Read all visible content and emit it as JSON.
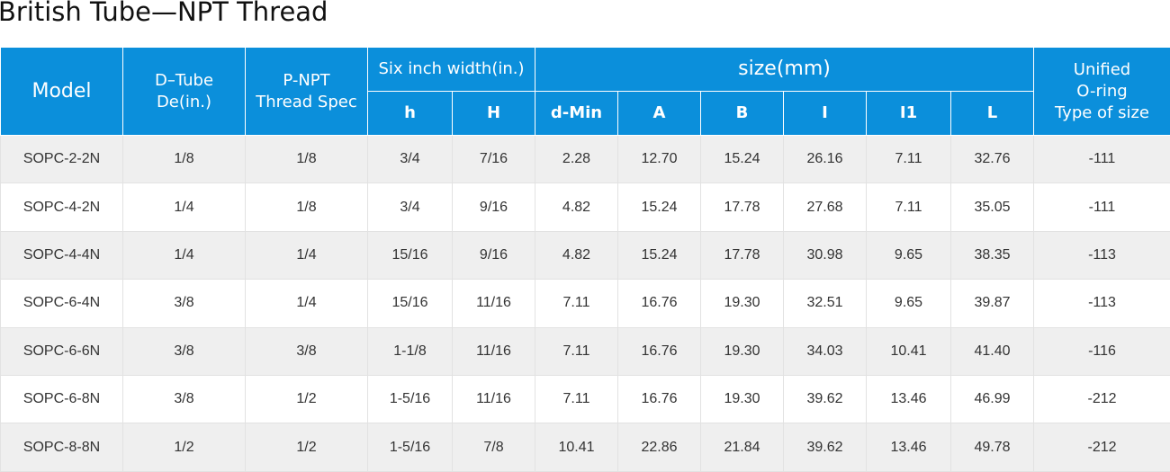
{
  "title": "British Tube—NPT Thread",
  "table": {
    "header_top": [
      {
        "lines": [
          "Model"
        ]
      },
      {
        "lines": [
          "D–Tube",
          "De(in.)"
        ]
      },
      {
        "lines": [
          "P-NPT",
          "Thread Spec"
        ]
      },
      {
        "lines": [
          "Six inch width(in.)"
        ]
      },
      {
        "lines": [
          "size(mm)"
        ]
      },
      {
        "lines": [
          "Unified",
          "O-ring",
          "Type of size"
        ]
      }
    ],
    "header_sub": [
      "h",
      "H",
      "d-Min",
      "A",
      "B",
      "I",
      "I1",
      "L"
    ],
    "rows": [
      [
        "SOPC-2-2N",
        "1/8",
        "1/8",
        "3/4",
        "7/16",
        "2.28",
        "12.70",
        "15.24",
        "26.16",
        "7.11",
        "32.76",
        "-111"
      ],
      [
        "SOPC-4-2N",
        "1/4",
        "1/8",
        "3/4",
        "9/16",
        "4.82",
        "15.24",
        "17.78",
        "27.68",
        "7.11",
        "35.05",
        "-111"
      ],
      [
        "SOPC-4-4N",
        "1/4",
        "1/4",
        "15/16",
        "9/16",
        "4.82",
        "15.24",
        "17.78",
        "30.98",
        "9.65",
        "38.35",
        "-113"
      ],
      [
        "SOPC-6-4N",
        "3/8",
        "1/4",
        "15/16",
        "11/16",
        "7.11",
        "16.76",
        "19.30",
        "32.51",
        "9.65",
        "39.87",
        "-113"
      ],
      [
        "SOPC-6-6N",
        "3/8",
        "3/8",
        "1-1/8",
        "11/16",
        "7.11",
        "16.76",
        "19.30",
        "34.03",
        "10.41",
        "41.40",
        "-116"
      ],
      [
        "SOPC-6-8N",
        "3/8",
        "1/2",
        "1-5/16",
        "11/16",
        "7.11",
        "16.76",
        "19.30",
        "39.62",
        "13.46",
        "46.99",
        "-212"
      ],
      [
        "SOPC-8-8N",
        "1/2",
        "1/2",
        "1-5/16",
        "7/8",
        "10.41",
        "22.86",
        "21.84",
        "39.62",
        "13.46",
        "49.78",
        "-212"
      ]
    ]
  }
}
